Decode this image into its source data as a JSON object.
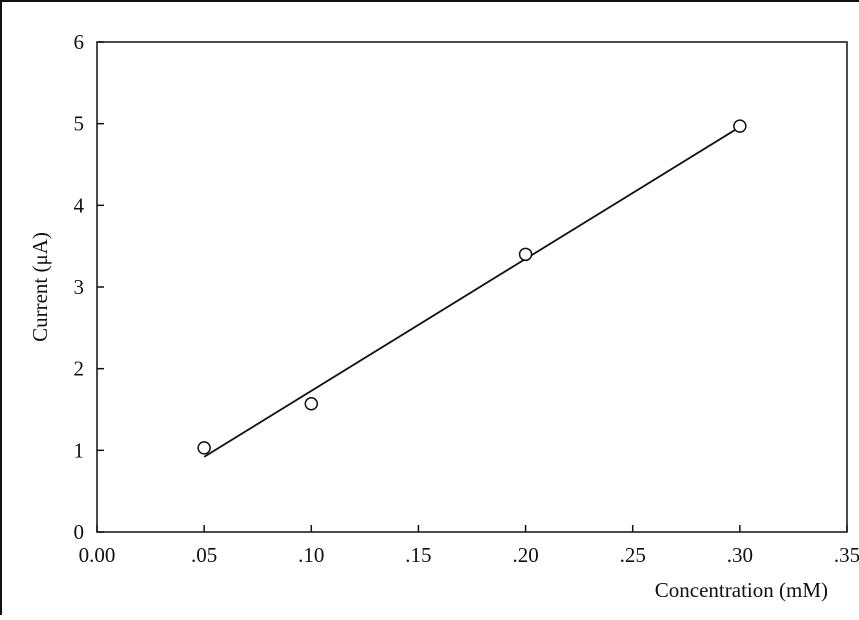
{
  "chart_data": {
    "type": "scatter",
    "xlabel": "Concentration (mM)",
    "ylabel": "Current (μA)",
    "xlim": [
      0,
      0.35
    ],
    "ylim": [
      0,
      6
    ],
    "x_ticks": [
      0,
      0.05,
      0.1,
      0.15,
      0.2,
      0.25,
      0.3,
      0.35
    ],
    "x_tick_labels": [
      "0.00",
      ".05",
      ".10",
      ".15",
      ".20",
      ".25",
      ".30",
      ".35"
    ],
    "y_ticks": [
      0,
      1,
      2,
      3,
      4,
      5,
      6
    ],
    "y_tick_labels": [
      "0",
      "1",
      "2",
      "3",
      "4",
      "5",
      "6"
    ],
    "grid": false,
    "series": [
      {
        "marker": "open-circle",
        "x": [
          0.05,
          0.1,
          0.2,
          0.3
        ],
        "y": [
          1.03,
          1.57,
          3.4,
          4.97
        ]
      }
    ],
    "fit_line": {
      "x": [
        0.05,
        0.3
      ],
      "y": [
        0.92,
        4.96
      ]
    },
    "colors": {
      "axis": "#111111",
      "marker_stroke": "#111111",
      "marker_fill": "#ffffff",
      "line": "#111111"
    }
  }
}
